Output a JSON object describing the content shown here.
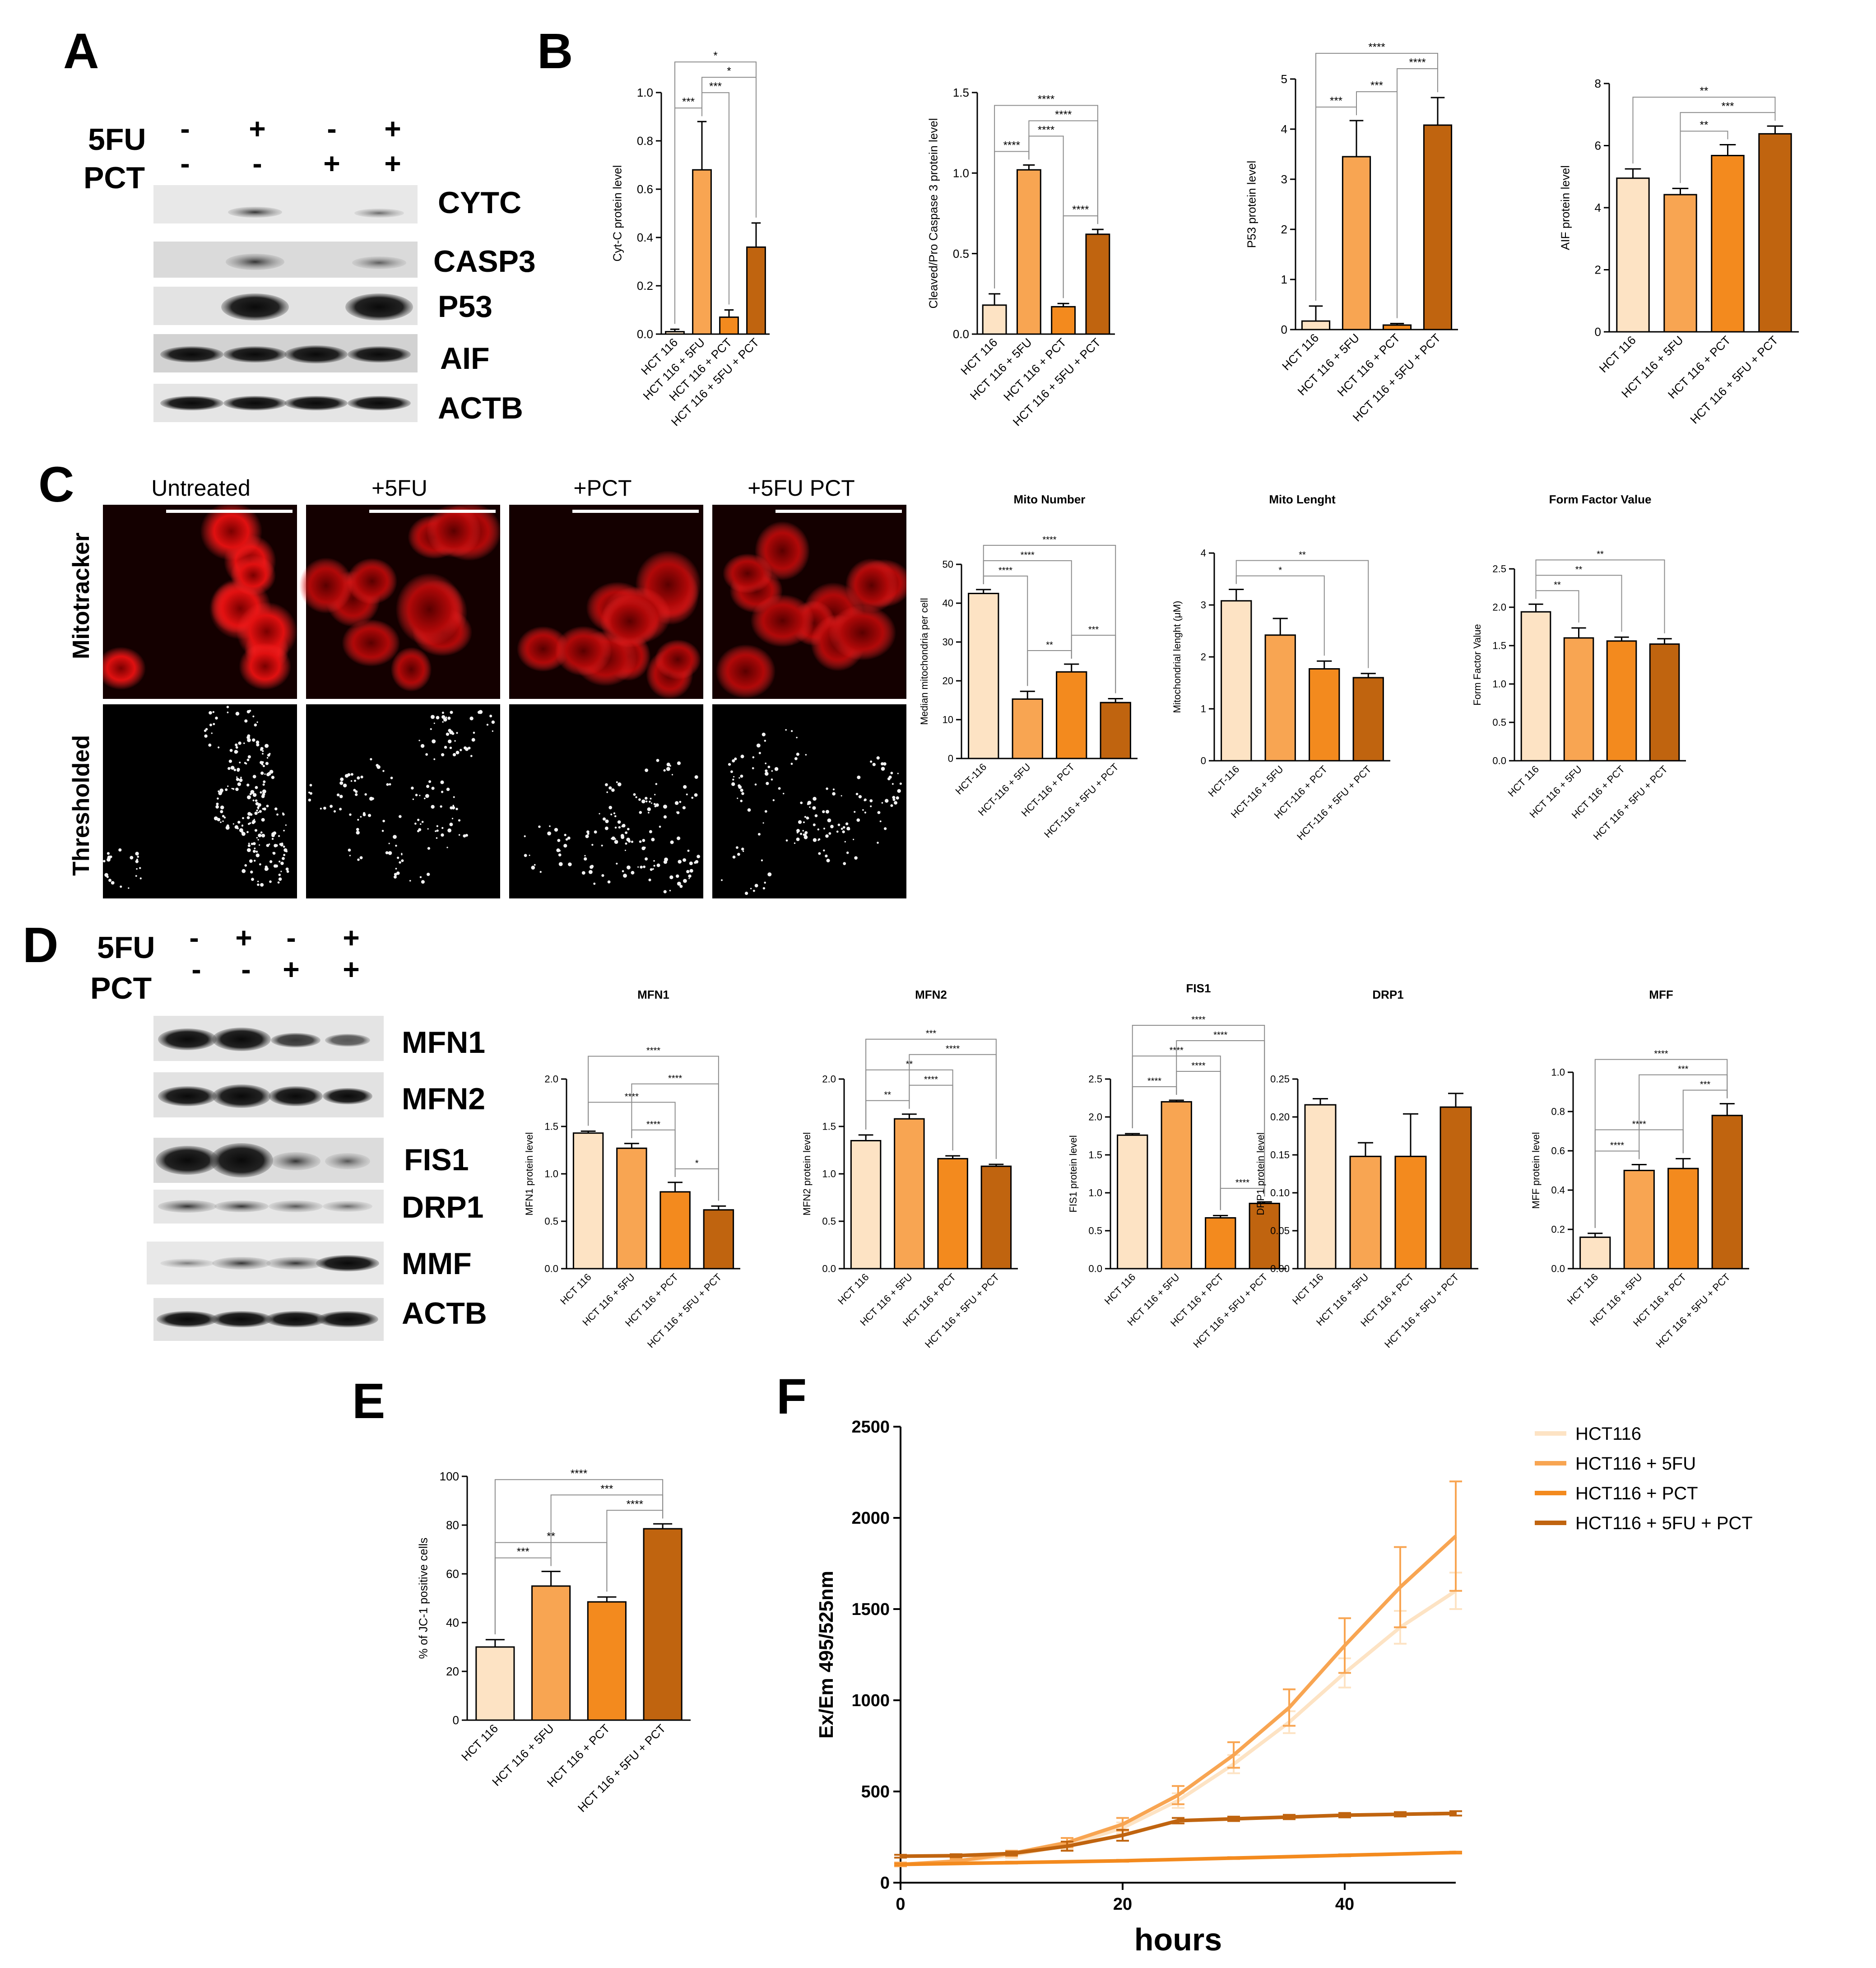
{
  "colors": {
    "ctrl": "#fde3c4",
    "fu": "#f8a552",
    "pct": "#f38a1e",
    "combo": "#c0640f",
    "bracket": "#8c8c8c"
  },
  "panels": [
    "A",
    "B",
    "C",
    "D",
    "E",
    "F"
  ],
  "panelA": {
    "rows": [
      {
        "label": "5FU",
        "signs": [
          "-",
          "+",
          "-",
          "+"
        ]
      },
      {
        "label": "PCT",
        "signs": [
          "-",
          "-",
          "+",
          "+"
        ]
      }
    ],
    "blots": [
      "CYTC",
      "CASP3",
      "P53",
      "AIF",
      "ACTB"
    ]
  },
  "panelC": {
    "columns": [
      "Untreated",
      "+5FU",
      "+PCT",
      "+5FU PCT"
    ],
    "rows": [
      "Mitotracker",
      "Thresholded"
    ]
  },
  "panelD": {
    "rows": [
      {
        "label": "5FU",
        "signs": [
          "-",
          "+",
          "-",
          "+"
        ]
      },
      {
        "label": "PCT",
        "signs": [
          "-",
          "-",
          "+",
          "+"
        ]
      }
    ],
    "blots": [
      "MFN1",
      "MFN2",
      "FIS1",
      "DRP1",
      "MMF",
      "ACTB"
    ]
  },
  "chart_data": [
    {
      "type": "bar",
      "panel": "B",
      "categories": [
        "HCT 116",
        "HCT 116 + 5FU",
        "HCT 116 + PCT",
        "HCT 116 + 5FU + PCT"
      ],
      "values": [
        0.01,
        0.68,
        0.07,
        0.36
      ],
      "errors": [
        0.01,
        0.2,
        0.03,
        0.1
      ],
      "title": "",
      "ylabel": "Cyt-C protein level",
      "ylim": [
        0,
        1.0
      ],
      "ticks": [
        "0.0",
        "0.2",
        "0.4",
        "0.6",
        "0.8",
        "1.0"
      ],
      "significance": [
        {
          "from": 0,
          "to": 1,
          "label": "***"
        },
        {
          "from": 1,
          "to": 2,
          "label": "***"
        },
        {
          "from": 1,
          "to": 3,
          "label": "*"
        },
        {
          "from": 0,
          "to": 3,
          "label": "*"
        }
      ]
    },
    {
      "type": "bar",
      "panel": "B",
      "categories": [
        "HCT 116",
        "HCT 116 + 5FU",
        "HCT 116 + PCT",
        "HCT 116 + 5FU + PCT"
      ],
      "values": [
        0.18,
        1.02,
        0.17,
        0.62
      ],
      "errors": [
        0.07,
        0.03,
        0.02,
        0.03
      ],
      "title": "",
      "ylabel": "Cleaved/Pro Caspase 3 protein level",
      "ylim": [
        0,
        1.5
      ],
      "ticks": [
        "0.0",
        "0.5",
        "1.0",
        "1.5"
      ],
      "significance": [
        {
          "from": 0,
          "to": 1,
          "label": "****"
        },
        {
          "from": 1,
          "to": 2,
          "label": "****"
        },
        {
          "from": 2,
          "to": 3,
          "label": "****"
        },
        {
          "from": 1,
          "to": 3,
          "label": "****"
        },
        {
          "from": 0,
          "to": 3,
          "label": "****"
        }
      ]
    },
    {
      "type": "bar",
      "panel": "B",
      "categories": [
        "HCT 116",
        "HCT 116 + 5FU",
        "HCT 116 + PCT",
        "HCT 116 + 5FU + PCT"
      ],
      "values": [
        0.17,
        3.45,
        0.09,
        4.08
      ],
      "errors": [
        0.3,
        0.72,
        0.03,
        0.55
      ],
      "title": "",
      "ylabel": "P53 protein level",
      "ylim": [
        0,
        5
      ],
      "ticks": [
        "0",
        "1",
        "2",
        "3",
        "4",
        "5"
      ],
      "significance": [
        {
          "from": 0,
          "to": 1,
          "label": "***"
        },
        {
          "from": 1,
          "to": 2,
          "label": "***"
        },
        {
          "from": 2,
          "to": 3,
          "label": "****"
        },
        {
          "from": 0,
          "to": 3,
          "label": "****"
        }
      ]
    },
    {
      "type": "bar",
      "panel": "B",
      "categories": [
        "HCT 116",
        "HCT 116 + 5FU",
        "HCT 116 + PCT",
        "HCT 116 + 5FU + PCT"
      ],
      "values": [
        4.95,
        4.42,
        5.68,
        6.38
      ],
      "errors": [
        0.3,
        0.2,
        0.35,
        0.25
      ],
      "title": "",
      "ylabel": "AIF protein level",
      "ylim": [
        0,
        8
      ],
      "ticks": [
        "0",
        "2",
        "4",
        "6",
        "8"
      ],
      "significance": [
        {
          "from": 1,
          "to": 2,
          "label": "**"
        },
        {
          "from": 1,
          "to": 3,
          "label": "***"
        },
        {
          "from": 0,
          "to": 3,
          "label": "**"
        }
      ]
    },
    {
      "type": "bar",
      "panel": "C",
      "categories": [
        "HCT-116",
        "HCT-116 + 5FU",
        "HCT-116 + PCT",
        "HCT-116 + 5FU + PCT"
      ],
      "values": [
        42.5,
        15.3,
        22.3,
        14.4
      ],
      "errors": [
        1.0,
        2.0,
        2.0,
        1.0
      ],
      "title": "Mito Number",
      "ylabel": "Median mitochondria per cell",
      "ylim": [
        0,
        50
      ],
      "ticks": [
        "0",
        "10",
        "20",
        "30",
        "40",
        "50"
      ],
      "significance": [
        {
          "from": 0,
          "to": 1,
          "label": "****"
        },
        {
          "from": 1,
          "to": 2,
          "label": "**"
        },
        {
          "from": 2,
          "to": 3,
          "label": "***"
        },
        {
          "from": 0,
          "to": 2,
          "label": "****"
        },
        {
          "from": 0,
          "to": 3,
          "label": "****"
        }
      ]
    },
    {
      "type": "bar",
      "panel": "C",
      "categories": [
        "HCT-116",
        "HCT-116 + 5FU",
        "HCT-116 + PCT",
        "HCT-116 + 5FU + PCT"
      ],
      "values": [
        3.08,
        2.42,
        1.77,
        1.6
      ],
      "errors": [
        0.22,
        0.32,
        0.15,
        0.08
      ],
      "title": "Mito Lenght",
      "ylabel": "Mitochondrial lenght (μM)",
      "ylim": [
        0,
        4
      ],
      "ticks": [
        "0",
        "1",
        "2",
        "3",
        "4"
      ],
      "significance": [
        {
          "from": 0,
          "to": 2,
          "label": "*"
        },
        {
          "from": 0,
          "to": 3,
          "label": "**"
        }
      ]
    },
    {
      "type": "bar",
      "panel": "C",
      "categories": [
        "HCT 116",
        "HCT 116 + 5FU",
        "HCT 116 + PCT",
        "HCT 116 + 5FU + PCT"
      ],
      "values": [
        1.94,
        1.6,
        1.56,
        1.52
      ],
      "errors": [
        0.1,
        0.13,
        0.05,
        0.07
      ],
      "title": "Form Factor Value",
      "ylabel": "Form Factor Value",
      "ylim": [
        0,
        2.5
      ],
      "ticks": [
        "0.0",
        "0.5",
        "1.0",
        "1.5",
        "2.0",
        "2.5"
      ],
      "significance": [
        {
          "from": 0,
          "to": 1,
          "label": "**"
        },
        {
          "from": 0,
          "to": 2,
          "label": "**"
        },
        {
          "from": 0,
          "to": 3,
          "label": "**"
        }
      ]
    },
    {
      "type": "bar",
      "panel": "D",
      "categories": [
        "HCT 116",
        "HCT 116 + 5FU",
        "HCT 116 + PCT",
        "HCT 116 + 5FU + PCT"
      ],
      "values": [
        1.43,
        1.27,
        0.81,
        0.62
      ],
      "errors": [
        0.02,
        0.05,
        0.1,
        0.04
      ],
      "title": "MFN1",
      "ylabel": "MFN1 protein level",
      "ylim": [
        0,
        2.0
      ],
      "ticks": [
        "0.0",
        "0.5",
        "1.0",
        "1.5",
        "2.0"
      ],
      "significance": [
        {
          "from": 0,
          "to": 2,
          "label": "****"
        },
        {
          "from": 1,
          "to": 2,
          "label": "****"
        },
        {
          "from": 2,
          "to": 3,
          "label": "*"
        },
        {
          "from": 1,
          "to": 3,
          "label": "****"
        },
        {
          "from": 0,
          "to": 3,
          "label": "****"
        }
      ]
    },
    {
      "type": "bar",
      "panel": "D",
      "categories": [
        "HCT 116",
        "HCT 116 + 5FU",
        "HCT 116 + PCT",
        "HCT 116 + 5FU + PCT"
      ],
      "values": [
        1.35,
        1.58,
        1.16,
        1.08
      ],
      "errors": [
        0.06,
        0.05,
        0.03,
        0.02
      ],
      "title": "MFN2",
      "ylabel": "MFN2 protein level",
      "ylim": [
        0,
        2.0
      ],
      "ticks": [
        "0.0",
        "0.5",
        "1.0",
        "1.5",
        "2.0"
      ],
      "significance": [
        {
          "from": 0,
          "to": 1,
          "label": "**"
        },
        {
          "from": 0,
          "to": 2,
          "label": "**"
        },
        {
          "from": 1,
          "to": 2,
          "label": "****"
        },
        {
          "from": 1,
          "to": 3,
          "label": "****"
        },
        {
          "from": 0,
          "to": 3,
          "label": "***"
        }
      ]
    },
    {
      "type": "bar",
      "panel": "D",
      "categories": [
        "HCT 116",
        "HCT 116 + 5FU",
        "HCT 116 + PCT",
        "HCT 116 + 5FU + PCT"
      ],
      "values": [
        1.76,
        2.2,
        0.67,
        0.86
      ],
      "errors": [
        0.02,
        0.02,
        0.03,
        0.02
      ],
      "title": "FIS1",
      "ylabel": "FIS1 protein level",
      "ylim": [
        0,
        2.5
      ],
      "ticks": [
        "0.0",
        "0.5",
        "1.0",
        "1.5",
        "2.0",
        "2.5"
      ],
      "significance": [
        {
          "from": 0,
          "to": 1,
          "label": "****"
        },
        {
          "from": 1,
          "to": 2,
          "label": "****"
        },
        {
          "from": 2,
          "to": 3,
          "label": "****"
        },
        {
          "from": 0,
          "to": 2,
          "label": "****"
        },
        {
          "from": 1,
          "to": 3,
          "label": "****"
        },
        {
          "from": 0,
          "to": 3,
          "label": "****"
        }
      ]
    },
    {
      "type": "bar",
      "panel": "D",
      "categories": [
        "HCT 116",
        "HCT 116 + 5FU",
        "HCT 116 + PCT",
        "HCT 116 + 5FU + PCT"
      ],
      "values": [
        0.216,
        0.148,
        0.148,
        0.213
      ],
      "errors": [
        0.008,
        0.018,
        0.056,
        0.018
      ],
      "title": "DRP1",
      "ylabel": "DRP1 protein level",
      "ylim": [
        0,
        0.25
      ],
      "ticks": [
        "0.00",
        "0.05",
        "0.10",
        "0.15",
        "0.20",
        "0.25"
      ],
      "significance": []
    },
    {
      "type": "bar",
      "panel": "D",
      "categories": [
        "HCT 116",
        "HCT 116 + 5FU",
        "HCT 116 + PCT",
        "HCT 116 + 5FU + PCT"
      ],
      "values": [
        0.16,
        0.5,
        0.51,
        0.78
      ],
      "errors": [
        0.02,
        0.03,
        0.05,
        0.06
      ],
      "title": "MFF",
      "ylabel": "MFF protein level",
      "ylim": [
        0,
        1.0
      ],
      "ticks": [
        "0.0",
        "0.2",
        "0.4",
        "0.6",
        "0.8",
        "1.0"
      ],
      "significance": [
        {
          "from": 0,
          "to": 1,
          "label": "****"
        },
        {
          "from": 0,
          "to": 2,
          "label": "****"
        },
        {
          "from": 2,
          "to": 3,
          "label": "***"
        },
        {
          "from": 1,
          "to": 3,
          "label": "***"
        },
        {
          "from": 0,
          "to": 3,
          "label": "****"
        }
      ]
    },
    {
      "type": "bar",
      "panel": "E",
      "categories": [
        "HCT 116",
        "HCT 116 + 5FU",
        "HCT 116 + PCT",
        "HCT 116 + 5FU + PCT"
      ],
      "values": [
        30,
        55,
        48.5,
        78.5
      ],
      "errors": [
        3,
        6,
        2,
        2
      ],
      "title": "",
      "ylabel": "% of JC-1 positive cells",
      "ylim": [
        0,
        100
      ],
      "ticks": [
        "0",
        "20",
        "40",
        "60",
        "80",
        "100"
      ],
      "significance": [
        {
          "from": 0,
          "to": 1,
          "label": "***"
        },
        {
          "from": 2,
          "to": 3,
          "label": "****"
        },
        {
          "from": 0,
          "to": 2,
          "label": "**"
        },
        {
          "from": 1,
          "to": 3,
          "label": "***"
        },
        {
          "from": 0,
          "to": 3,
          "label": "****"
        }
      ]
    },
    {
      "type": "line",
      "panel": "F",
      "xlabel": "hours",
      "ylabel": "Ex/Em 495/525nm",
      "xlim": [
        0,
        50
      ],
      "ylim": [
        0,
        2500
      ],
      "xticks": [
        "0",
        "20",
        "40"
      ],
      "yticks": [
        "0",
        "500",
        "1000",
        "1500",
        "2000",
        "2500"
      ],
      "legend_position": "top-right",
      "series": [
        {
          "name": "HCT116",
          "x": [
            0,
            5,
            10,
            15,
            20,
            25,
            30,
            35,
            40,
            45,
            50
          ],
          "y": [
            100,
            115,
            150,
            205,
            300,
            450,
            650,
            880,
            1150,
            1400,
            1600
          ],
          "err": [
            10,
            12,
            15,
            20,
            30,
            40,
            50,
            60,
            80,
            90,
            100
          ]
        },
        {
          "name": "HCT116 + 5FU",
          "x": [
            0,
            5,
            10,
            15,
            20,
            25,
            30,
            35,
            40,
            45,
            50
          ],
          "y": [
            100,
            118,
            160,
            220,
            320,
            480,
            700,
            960,
            1300,
            1620,
            1900
          ],
          "err": [
            10,
            12,
            15,
            25,
            35,
            50,
            70,
            100,
            150,
            220,
            300
          ]
        },
        {
          "name": "HCT116 + PCT",
          "x": [
            0,
            10,
            20,
            30,
            40,
            50
          ],
          "y": [
            100,
            110,
            120,
            135,
            150,
            165
          ],
          "err": [
            5,
            5,
            5,
            5,
            5,
            5
          ]
        },
        {
          "name": "HCT116 + 5FU + PCT",
          "x": [
            0,
            5,
            10,
            15,
            20,
            25,
            30,
            35,
            40,
            45,
            50
          ],
          "y": [
            145,
            148,
            160,
            200,
            260,
            340,
            350,
            360,
            370,
            375,
            380
          ],
          "err": [
            8,
            8,
            10,
            25,
            30,
            15,
            12,
            12,
            12,
            12,
            12
          ]
        }
      ]
    }
  ]
}
